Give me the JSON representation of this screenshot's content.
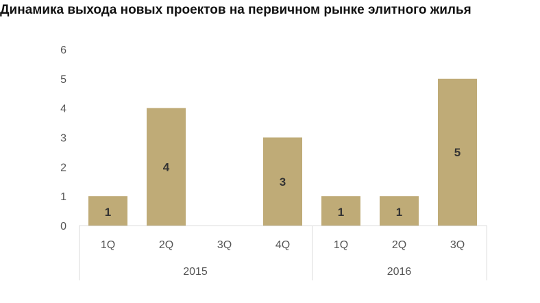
{
  "chart_data": {
    "type": "bar",
    "title": "Динамика выхода новых проектов на первичном рынке элитного жилья",
    "xlabel": "",
    "ylabel": "",
    "ylim": [
      0,
      6
    ],
    "yticks": [
      "0",
      "1",
      "2",
      "3",
      "4",
      "5",
      "6"
    ],
    "grid": false,
    "legend": "none",
    "bar_color": "#bfab77",
    "groups": [
      {
        "label": "2015",
        "categories": [
          "1Q",
          "2Q",
          "3Q",
          "4Q"
        ],
        "values": [
          1,
          4,
          0,
          3
        ],
        "data_labels": [
          "1",
          "4",
          "",
          "3"
        ]
      },
      {
        "label": "2016",
        "categories": [
          "1Q",
          "2Q",
          "3Q"
        ],
        "values": [
          1,
          1,
          5
        ],
        "data_labels": [
          "1",
          "1",
          "5"
        ]
      }
    ]
  }
}
